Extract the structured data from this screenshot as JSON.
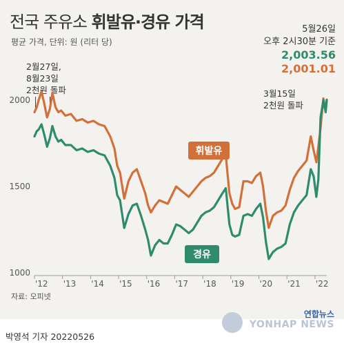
{
  "header": {
    "title_light": "전국 주유소 ",
    "title_bold": "휘발유·경유 가격",
    "subtitle": "평균 가격, 단위: 원 (리터 당)"
  },
  "latest": {
    "date": "5월26일",
    "time": "오후 2시30분 기준",
    "diesel_value": "2,003.56",
    "gasoline_value": "2,001.01"
  },
  "annotations": {
    "left": [
      "2월27일,",
      "8월23일",
      "2천원 돌파"
    ],
    "right": [
      "3월15일",
      "2천원 돌파"
    ]
  },
  "footer": {
    "source": "자료: 오피넷",
    "credit": "박영석 기자  20220526",
    "logo_kr": "연합뉴스",
    "logo_en": "YONHAP NEWS"
  },
  "colors": {
    "gasoline": "#d2703a",
    "diesel": "#2e8b6e",
    "background": "#f4f2ee"
  },
  "chart_data": {
    "type": "line",
    "ylim": [
      1000,
      2100
    ],
    "yticks": [
      1000,
      1500,
      2000
    ],
    "xlim": [
      2012.0,
      2022.42
    ],
    "xticks": [
      "'12",
      "'13",
      "'14",
      "'15",
      "'16",
      "'17",
      "'18",
      "'19",
      "'20",
      "'21",
      "'22"
    ],
    "grid": false,
    "series": [
      {
        "name": "휘발유",
        "color": "#d2703a",
        "x": [
          2012.0,
          2012.08,
          2012.15,
          2012.25,
          2012.35,
          2012.45,
          2012.55,
          2012.64,
          2012.75,
          2012.85,
          2012.95,
          2013.1,
          2013.3,
          2013.5,
          2013.7,
          2013.9,
          2014.1,
          2014.3,
          2014.5,
          2014.7,
          2014.85,
          2014.95,
          2015.05,
          2015.2,
          2015.35,
          2015.5,
          2015.65,
          2015.8,
          2015.95,
          2016.05,
          2016.15,
          2016.3,
          2016.45,
          2016.6,
          2016.75,
          2016.9,
          2017.05,
          2017.2,
          2017.35,
          2017.5,
          2017.65,
          2017.8,
          2017.95,
          2018.1,
          2018.25,
          2018.4,
          2018.55,
          2018.7,
          2018.82,
          2018.95,
          2019.05,
          2019.15,
          2019.3,
          2019.45,
          2019.6,
          2019.75,
          2019.9,
          2020.05,
          2020.15,
          2020.25,
          2020.35,
          2020.5,
          2020.65,
          2020.8,
          2020.95,
          2021.1,
          2021.25,
          2021.4,
          2021.55,
          2021.7,
          2021.85,
          2021.95,
          2022.05,
          2022.12,
          2022.2,
          2022.3,
          2022.38,
          2022.42
        ],
        "y": [
          1930,
          1960,
          2000,
          2050,
          1980,
          1900,
          1950,
          2040,
          1960,
          1930,
          1940,
          1910,
          1920,
          1880,
          1890,
          1870,
          1880,
          1860,
          1850,
          1790,
          1720,
          1620,
          1580,
          1430,
          1530,
          1580,
          1600,
          1530,
          1460,
          1390,
          1350,
          1390,
          1420,
          1410,
          1400,
          1450,
          1500,
          1480,
          1460,
          1440,
          1470,
          1500,
          1530,
          1550,
          1560,
          1580,
          1620,
          1660,
          1680,
          1460,
          1400,
          1370,
          1380,
          1530,
          1530,
          1520,
          1560,
          1580,
          1500,
          1360,
          1260,
          1330,
          1350,
          1360,
          1390,
          1480,
          1550,
          1590,
          1620,
          1650,
          1790,
          1710,
          1640,
          1730,
          1840,
          2010,
          1940,
          2001
        ]
      },
      {
        "name": "경유",
        "color": "#2e8b6e",
        "x": [
          2012.0,
          2012.08,
          2012.15,
          2012.25,
          2012.35,
          2012.45,
          2012.55,
          2012.64,
          2012.75,
          2012.85,
          2012.95,
          2013.1,
          2013.3,
          2013.5,
          2013.7,
          2013.9,
          2014.1,
          2014.3,
          2014.5,
          2014.7,
          2014.85,
          2014.95,
          2015.05,
          2015.2,
          2015.35,
          2015.5,
          2015.65,
          2015.8,
          2015.95,
          2016.05,
          2016.15,
          2016.3,
          2016.45,
          2016.6,
          2016.75,
          2016.9,
          2017.05,
          2017.2,
          2017.35,
          2017.5,
          2017.65,
          2017.8,
          2017.95,
          2018.1,
          2018.25,
          2018.4,
          2018.55,
          2018.7,
          2018.82,
          2018.95,
          2019.05,
          2019.15,
          2019.3,
          2019.45,
          2019.6,
          2019.75,
          2019.9,
          2020.05,
          2020.15,
          2020.25,
          2020.35,
          2020.5,
          2020.65,
          2020.8,
          2020.95,
          2021.1,
          2021.25,
          2021.4,
          2021.55,
          2021.7,
          2021.85,
          2021.95,
          2022.05,
          2022.12,
          2022.2,
          2022.3,
          2022.38,
          2022.42
        ],
        "y": [
          1790,
          1820,
          1830,
          1860,
          1800,
          1730,
          1780,
          1850,
          1790,
          1760,
          1770,
          1740,
          1740,
          1710,
          1720,
          1700,
          1710,
          1690,
          1680,
          1620,
          1550,
          1450,
          1420,
          1260,
          1340,
          1390,
          1400,
          1330,
          1250,
          1190,
          1100,
          1160,
          1190,
          1170,
          1170,
          1220,
          1280,
          1270,
          1250,
          1230,
          1250,
          1290,
          1330,
          1350,
          1360,
          1380,
          1420,
          1460,
          1490,
          1280,
          1220,
          1210,
          1220,
          1330,
          1340,
          1330,
          1370,
          1400,
          1320,
          1180,
          1080,
          1120,
          1140,
          1150,
          1170,
          1280,
          1350,
          1390,
          1420,
          1450,
          1600,
          1560,
          1440,
          1540,
          1900,
          2000,
          1930,
          2003
        ]
      }
    ]
  }
}
